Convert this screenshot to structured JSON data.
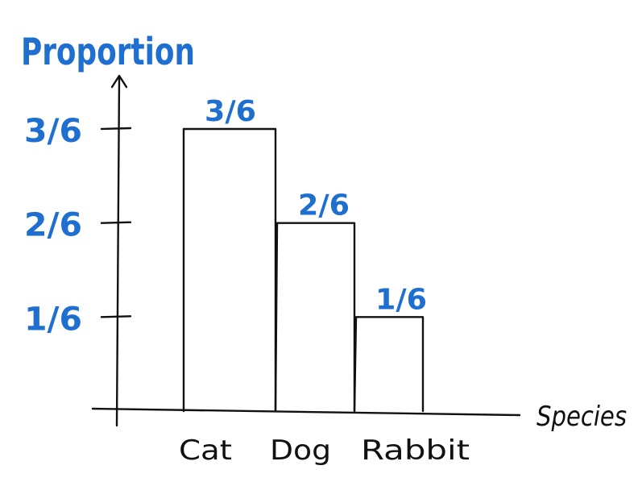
{
  "chart_data": {
    "type": "bar",
    "categories": [
      "Cat",
      "Dog",
      "Rabbit"
    ],
    "values": [
      0.5,
      0.3333,
      0.1667
    ],
    "value_labels": [
      "3/6",
      "2/6",
      "1/6"
    ],
    "ylabel": "Proportion",
    "xlabel": "Species",
    "yticks": [
      {
        "value": 0.1667,
        "label": "1/6"
      },
      {
        "value": 0.3333,
        "label": "2/6"
      },
      {
        "value": 0.5,
        "label": "3/6"
      }
    ],
    "ylim": [
      0,
      0.6
    ],
    "grid": false,
    "colors": {
      "annotation": "#1f6fd1",
      "ink": "#111111"
    }
  }
}
